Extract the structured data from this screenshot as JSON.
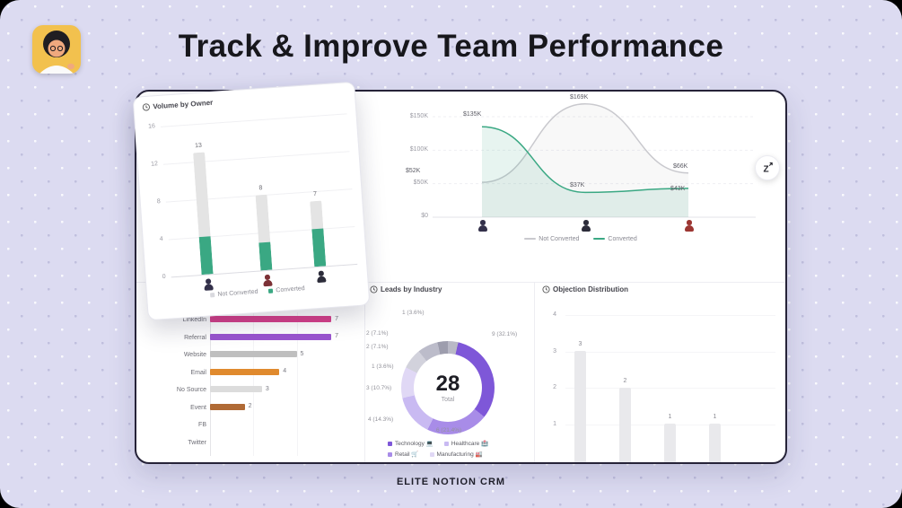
{
  "page": {
    "title": "Track & Improve Team Performance",
    "footer": "ELITE NOTION CRM"
  },
  "accent": {
    "green": "#3aa883"
  },
  "volume_chart": {
    "title": "Volume by Owner",
    "y_ticks": [
      "16",
      "12",
      "8",
      "4",
      "0"
    ],
    "y_max": 16,
    "legend": [
      {
        "label": "Not Converted",
        "color": "#d9d9de"
      },
      {
        "label": "Converted",
        "color": "#3aa883"
      }
    ],
    "bars": [
      {
        "total": 13,
        "converted": 4,
        "not_converted": 9,
        "avatar_color": "#33304a"
      },
      {
        "total": 8,
        "converted": 3,
        "not_converted": 5,
        "avatar_color": "#7c3136"
      },
      {
        "total": 7,
        "converted": 4,
        "not_converted": 3,
        "avatar_color": "#2c2c3a"
      }
    ]
  },
  "revenue_chart": {
    "y_ticks": [
      "$150K",
      "$100K",
      "$50K",
      "$0"
    ],
    "y_max_value": 150,
    "series": [
      {
        "name": "Not Converted",
        "color": "#c9c9ce",
        "fill": "rgba(150,150,160,0.07)",
        "values": [
          52,
          169,
          66
        ],
        "labels": [
          "$52K",
          "$169K",
          "$66K"
        ]
      },
      {
        "name": "Converted",
        "color": "#3aa883",
        "fill": "rgba(58,168,131,0.12)",
        "values": [
          135,
          37,
          43
        ],
        "labels": [
          "$135K",
          "$37K",
          "$43K"
        ]
      }
    ],
    "avatars": [
      "#33304a",
      "#2c2c3a",
      "#9c3632"
    ]
  },
  "source_chart": {
    "max": 7,
    "rows": [
      {
        "label": "LinkedIn",
        "value": 7,
        "color": "#d6408b"
      },
      {
        "label": "Referral",
        "value": 7,
        "color": "#9a55cf"
      },
      {
        "label": "Website",
        "value": 5,
        "color": "#bfbfbf"
      },
      {
        "label": "Email",
        "value": 4,
        "color": "#e08a2e"
      },
      {
        "label": "No Source",
        "value": 3,
        "color": "#dcdcdc"
      },
      {
        "label": "Event",
        "value": 2,
        "color": "#b06a35"
      },
      {
        "label": "FB",
        "value": 0,
        "color": "#dcdcdc"
      },
      {
        "label": "Twitter",
        "value": 0,
        "color": "#dcdcdc"
      }
    ]
  },
  "industry_chart": {
    "title": "Leads by Industry",
    "total": "28",
    "total_label": "Total",
    "segments": [
      {
        "value": 1,
        "label": "1 (3.6%)",
        "color": "#b9b9c6"
      },
      {
        "value": 9,
        "label": "9 (32.1%)",
        "color": "#7e57d8"
      },
      {
        "value": 6,
        "label": "6 (21.4%)",
        "color": "#a88ce8"
      },
      {
        "value": 4,
        "label": "4 (14.3%)",
        "color": "#c9baf2"
      },
      {
        "value": 3,
        "label": "3 (10.7%)",
        "color": "#e0d8f5"
      },
      {
        "value": 2,
        "label": "2 (7.1%)",
        "color": "#d2d2dc"
      },
      {
        "value": 2,
        "label": "2 (7.1%)",
        "color": "#bcbcca"
      },
      {
        "value": 1,
        "label": "1 (3.6%)",
        "color": "#9d9dad"
      }
    ],
    "legend": [
      {
        "label": "Technology 💻",
        "color": "#7e57d8"
      },
      {
        "label": "Healthcare 🏥",
        "color": "#c9baf2"
      },
      {
        "label": "Retail 🛒",
        "color": "#a88ce8"
      },
      {
        "label": "Manufacturing 🏭",
        "color": "#e0d8f5"
      }
    ]
  },
  "objection_chart": {
    "title": "Objection Distribution",
    "y_ticks": [
      "4",
      "3",
      "2",
      "1"
    ],
    "values": [
      3,
      2,
      1,
      1
    ]
  }
}
